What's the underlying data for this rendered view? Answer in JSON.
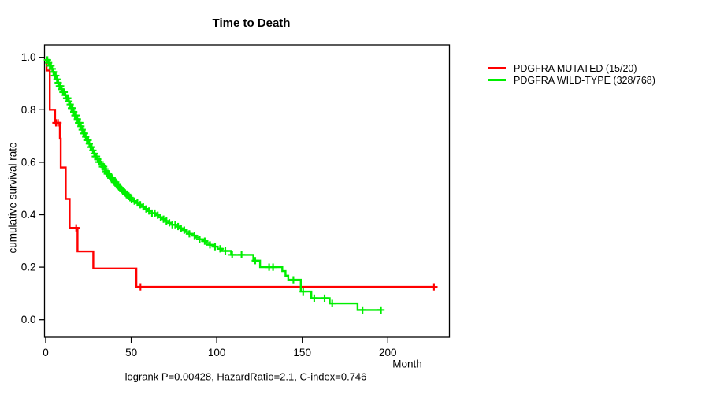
{
  "chart_data": {
    "type": "line",
    "subtype": "kaplan-meier-step",
    "title": "Time to Death",
    "xlabel": "Month",
    "ylabel": "cumulative survival rate",
    "annotation": "logrank P=0.00428, HazardRatio=2.1, C-index=0.746",
    "xlim": [
      0,
      236
    ],
    "ylim": [
      0,
      1.0
    ],
    "x_ticks": [
      0,
      50,
      100,
      150,
      200
    ],
    "y_ticks": [
      0.0,
      0.2,
      0.4,
      0.6,
      0.8,
      1.0
    ],
    "grid": false,
    "legend_position": "right-outside",
    "series": [
      {
        "name": "PDGFRA MUTATED (15/20)",
        "color": "#ff0000",
        "end": 227,
        "points": [
          [
            0,
            1.0
          ],
          [
            0.5,
            0.95
          ],
          [
            2.4,
            0.8
          ],
          [
            5.5,
            0.75
          ],
          [
            8.3,
            0.69
          ],
          [
            8.8,
            0.58
          ],
          [
            11.7,
            0.46
          ],
          [
            14,
            0.35
          ],
          [
            18.6,
            0.26
          ],
          [
            27.8,
            0.195
          ],
          [
            53,
            0.125
          ]
        ],
        "censors": [
          6.0,
          7.2,
          17.8,
          55.4,
          227
        ]
      },
      {
        "name": "PDGFRA WILD-TYPE (328/768)",
        "color": "#00ee00",
        "end": 196,
        "points": [
          [
            0,
            1.0
          ],
          [
            0.8,
            0.99
          ],
          [
            1.6,
            0.979
          ],
          [
            2.4,
            0.968
          ],
          [
            3.2,
            0.956
          ],
          [
            4,
            0.944
          ],
          [
            5,
            0.93
          ],
          [
            6,
            0.916
          ],
          [
            7,
            0.903
          ],
          [
            8,
            0.89
          ],
          [
            9,
            0.878
          ],
          [
            10,
            0.867
          ],
          [
            11,
            0.856
          ],
          [
            12,
            0.844
          ],
          [
            13,
            0.832
          ],
          [
            14,
            0.82
          ],
          [
            15,
            0.806
          ],
          [
            16,
            0.792
          ],
          [
            17,
            0.778
          ],
          [
            18,
            0.764
          ],
          [
            19,
            0.75
          ],
          [
            20,
            0.737
          ],
          [
            21,
            0.724
          ],
          [
            22,
            0.71
          ],
          [
            23,
            0.697
          ],
          [
            24,
            0.684
          ],
          [
            25,
            0.671
          ],
          [
            26,
            0.658
          ],
          [
            27,
            0.645
          ],
          [
            28,
            0.633
          ],
          [
            29,
            0.622
          ],
          [
            30,
            0.611
          ],
          [
            31,
            0.601
          ],
          [
            32,
            0.592
          ],
          [
            33,
            0.583
          ],
          [
            34,
            0.574
          ],
          [
            35,
            0.565
          ],
          [
            36,
            0.556
          ],
          [
            37,
            0.548
          ],
          [
            38,
            0.54
          ],
          [
            39,
            0.532
          ],
          [
            40,
            0.524
          ],
          [
            41,
            0.517
          ],
          [
            42,
            0.51
          ],
          [
            43,
            0.503
          ],
          [
            44,
            0.496
          ],
          [
            45,
            0.489
          ],
          [
            46,
            0.483
          ],
          [
            47,
            0.477
          ],
          [
            48,
            0.471
          ],
          [
            49,
            0.465
          ],
          [
            50,
            0.459
          ],
          [
            51.6,
            0.452
          ],
          [
            53,
            0.445
          ],
          [
            54.5,
            0.438
          ],
          [
            56,
            0.43
          ],
          [
            58,
            0.422
          ],
          [
            60,
            0.414
          ],
          [
            62,
            0.406
          ],
          [
            64,
            0.398
          ],
          [
            66,
            0.39
          ],
          [
            68,
            0.383
          ],
          [
            70,
            0.376
          ],
          [
            72,
            0.369
          ],
          [
            74,
            0.362
          ],
          [
            76,
            0.355
          ],
          [
            78,
            0.348
          ],
          [
            80,
            0.341
          ],
          [
            82,
            0.334
          ],
          [
            84,
            0.327
          ],
          [
            86,
            0.32
          ],
          [
            88,
            0.313
          ],
          [
            90,
            0.306
          ],
          [
            92,
            0.299
          ],
          [
            94,
            0.292
          ],
          [
            96,
            0.285
          ],
          [
            98,
            0.278
          ],
          [
            100.5,
            0.27
          ],
          [
            103,
            0.262
          ],
          [
            108.4,
            0.247
          ],
          [
            121.4,
            0.225
          ],
          [
            125.3,
            0.2
          ],
          [
            138.3,
            0.185
          ],
          [
            140.2,
            0.168
          ],
          [
            141.8,
            0.152
          ],
          [
            149.1,
            0.107
          ],
          [
            155.3,
            0.082
          ],
          [
            166,
            0.062
          ],
          [
            182.3,
            0.037
          ]
        ],
        "censors": [
          1.0,
          1.7,
          2.4,
          3.1,
          3.8,
          4.5,
          5.2,
          5.9,
          6.6,
          7.3,
          8.0,
          8.7,
          9.4,
          10.1,
          10.8,
          11.5,
          12.2,
          12.9,
          13.6,
          14.3,
          15.0,
          15.7,
          16.4,
          17.1,
          17.8,
          18.5,
          19.2,
          19.9,
          20.6,
          21.3,
          22.0,
          22.7,
          23.4,
          24.1,
          24.8,
          25.5,
          26.2,
          26.9,
          27.6,
          28.3,
          29.0,
          29.7,
          30.4,
          31.1,
          31.8,
          32.5,
          33.2,
          33.9,
          34.6,
          35.3,
          36.0,
          36.7,
          37.4,
          38.1,
          38.8,
          39.5,
          40.2,
          40.9,
          41.6,
          42.3,
          43.0,
          43.7,
          44.4,
          45.1,
          45.8,
          46.5,
          47.2,
          47.9,
          48.6,
          49.3,
          50.2,
          51.9,
          53.6,
          55.3,
          57.0,
          58.7,
          60.4,
          62.1,
          63.8,
          65.5,
          67.2,
          68.9,
          70.6,
          72.3,
          74.0,
          75.7,
          77.4,
          79.1,
          81,
          84,
          87,
          90,
          93,
          96,
          99,
          102,
          105,
          109,
          114.5,
          122.5,
          130.6,
          132.9,
          144.8,
          150.5,
          157,
          163,
          167.5,
          185.2,
          196
        ]
      }
    ]
  }
}
